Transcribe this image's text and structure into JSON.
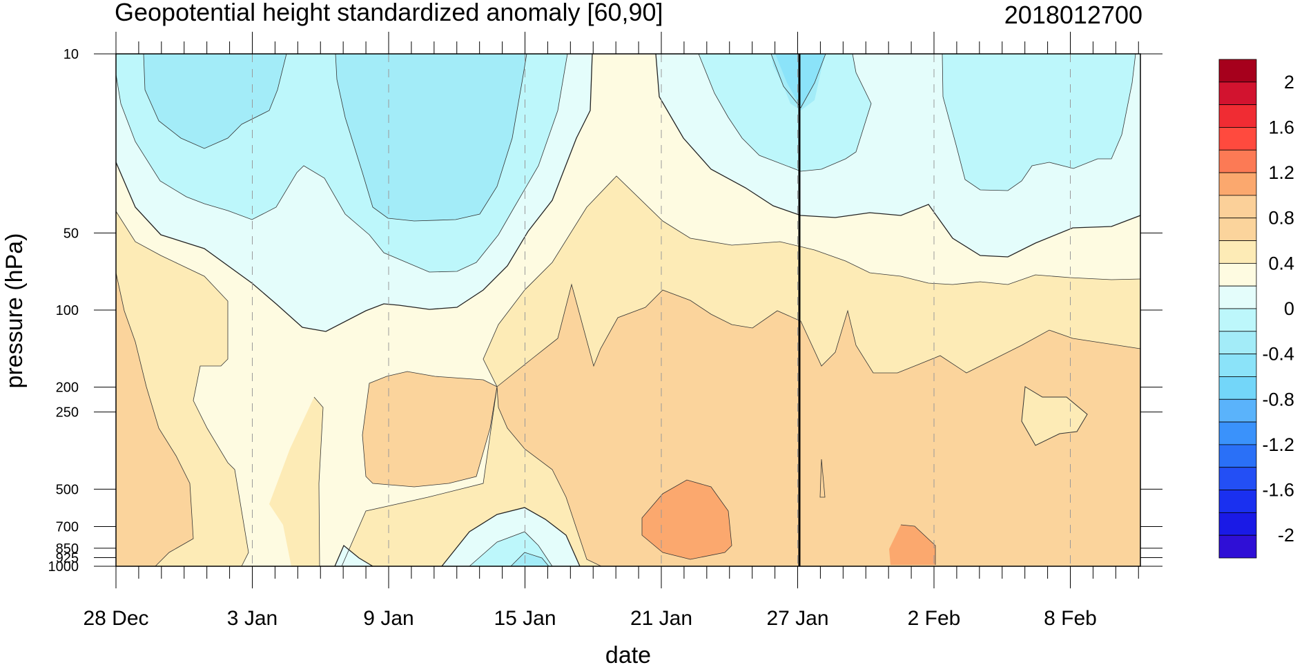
{
  "chart_data": {
    "type": "heatmap",
    "subtype": "filled-contour (time-pressure cross section)",
    "title": "Geopotential height standardized anomaly [60,90]",
    "subtitle_right": "2018012700",
    "xlabel": "date",
    "ylabel": "pressure (hPa)",
    "x_tick_labels": [
      "28 Dec",
      "3 Jan",
      "9 Jan",
      "15 Jan",
      "21 Jan",
      "27 Jan",
      "2 Feb",
      "8 Feb"
    ],
    "y_tick_labels": [
      "10",
      "50",
      "100",
      "200",
      "250",
      "500",
      "700",
      "850",
      "925",
      "1000"
    ],
    "y_scale": "log (inverted)",
    "marked_date": "27 Jan",
    "colorbar_labels": [
      "2",
      "1.6",
      "1.2",
      "0.8",
      "0.4",
      "0",
      "-0.4",
      "-0.8",
      "-1.2",
      "-1.6",
      "-2"
    ],
    "colorbar_levels": [
      -2.2,
      -2.0,
      -1.8,
      -1.6,
      -1.4,
      -1.2,
      -1.0,
      -0.8,
      -0.6,
      -0.4,
      -0.2,
      0.0,
      0.2,
      0.4,
      0.6,
      0.8,
      1.0,
      1.2,
      1.4,
      1.6,
      1.8,
      2.0,
      2.2
    ],
    "colorbar_colors": [
      "#a6001c",
      "#d2132f",
      "#f02c33",
      "#ff4a3e",
      "#fc7a55",
      "#fba86e",
      "#fbd099",
      "#fbd49c",
      "#fdebb6",
      "#fefbe1",
      "#e4fdfb",
      "#bdf7fb",
      "#a3ecf8",
      "#8be3f9",
      "#73d6f9",
      "#5ab3fb",
      "#3a92fb",
      "#2a70f7",
      "#234ff5",
      "#1a30f0",
      "#1a1ae6",
      "#2f0fd6"
    ],
    "palette": {
      "pos_0_2": "#fefbe1",
      "pos_2_4": "#fdebb6",
      "pos_4_6": "#fbd49c",
      "pos_8_10": "#fba86e",
      "neg_0_2": "#e4fdfb",
      "neg_2_4": "#bdf7fb",
      "neg_4_6": "#a3ecf8",
      "neg_6_8": "#8be3f9"
    }
  }
}
